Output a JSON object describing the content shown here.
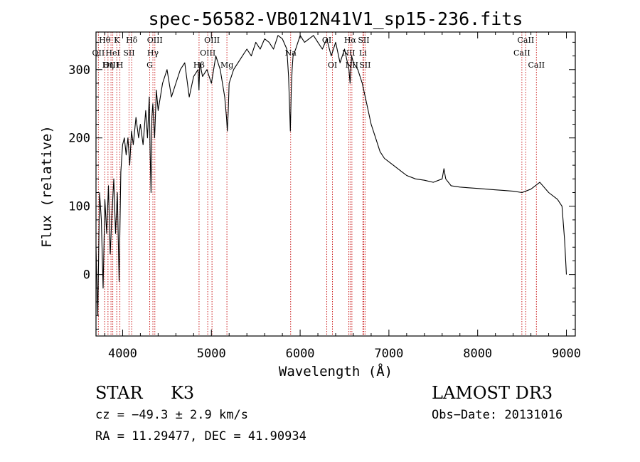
{
  "chart_data": {
    "type": "line",
    "title": "spec-56582-VB012N41V1_sp15-236.fits",
    "xlabel": "Wavelength (Å)",
    "ylabel": "Flux (relative)",
    "xlim": [
      3700,
      9100
    ],
    "ylim": [
      -90,
      355
    ],
    "xticks": [
      4000,
      5000,
      6000,
      7000,
      8000,
      9000
    ],
    "xtick_labels": [
      "4000",
      "5000",
      "6000",
      "7000",
      "8000",
      "9000"
    ],
    "yticks": [
      0,
      100,
      200,
      300
    ],
    "ytick_labels": [
      "0",
      "100",
      "200",
      "300"
    ],
    "grid": false,
    "series": [
      {
        "name": "flux",
        "x": [
          3700,
          3720,
          3740,
          3760,
          3780,
          3800,
          3820,
          3840,
          3860,
          3880,
          3900,
          3920,
          3940,
          3960,
          3980,
          4000,
          4020,
          4040,
          4060,
          4080,
          4100,
          4120,
          4150,
          4180,
          4200,
          4230,
          4260,
          4280,
          4300,
          4310,
          4320,
          4330,
          4340,
          4360,
          4380,
          4400,
          4450,
          4500,
          4550,
          4600,
          4650,
          4700,
          4750,
          4800,
          4850,
          4860,
          4870,
          4900,
          4950,
          5000,
          5050,
          5100,
          5150,
          5170,
          5180,
          5190,
          5200,
          5250,
          5300,
          5350,
          5400,
          5450,
          5500,
          5550,
          5600,
          5650,
          5700,
          5750,
          5800,
          5850,
          5870,
          5880,
          5890,
          5900,
          5910,
          5920,
          5950,
          6000,
          6050,
          6100,
          6150,
          6200,
          6250,
          6300,
          6350,
          6400,
          6450,
          6500,
          6550,
          6563,
          6580,
          6600,
          6650,
          6700,
          6750,
          6800,
          6850,
          6900,
          6950,
          7000,
          7050,
          7100,
          7150,
          7200,
          7300,
          7400,
          7500,
          7600,
          7620,
          7640,
          7700,
          7800,
          7900,
          8000,
          8100,
          8200,
          8300,
          8400,
          8500,
          8600,
          8650,
          8700,
          8800,
          8900,
          8950,
          8980,
          9000
        ],
        "y": [
          40,
          -60,
          120,
          80,
          -20,
          110,
          60,
          130,
          30,
          90,
          140,
          60,
          120,
          -10,
          150,
          190,
          200,
          175,
          200,
          160,
          210,
          190,
          230,
          200,
          220,
          190,
          240,
          200,
          260,
          180,
          120,
          230,
          250,
          200,
          270,
          240,
          280,
          300,
          260,
          280,
          300,
          310,
          260,
          290,
          300,
          270,
          310,
          290,
          300,
          280,
          320,
          300,
          260,
          230,
          210,
          240,
          280,
          300,
          310,
          320,
          330,
          320,
          340,
          330,
          345,
          340,
          330,
          350,
          345,
          330,
          290,
          250,
          210,
          270,
          300,
          320,
          330,
          350,
          340,
          345,
          350,
          340,
          330,
          345,
          320,
          340,
          310,
          330,
          300,
          280,
          320,
          310,
          300,
          280,
          250,
          220,
          200,
          180,
          170,
          165,
          160,
          155,
          150,
          145,
          140,
          138,
          135,
          140,
          155,
          140,
          130,
          128,
          127,
          126,
          125,
          124,
          123,
          122,
          120,
          125,
          130,
          135,
          120,
          110,
          100,
          50,
          0
        ]
      }
    ],
    "annotations": [
      {
        "label": "Hθ",
        "x": 3798,
        "row": 0
      },
      {
        "label": "OII",
        "x": 3727,
        "row": 1
      },
      {
        "label": "OIII",
        "x": 3869,
        "row": 2
      },
      {
        "label": "K",
        "x": 3934,
        "row": 0
      },
      {
        "label": "HeI",
        "x": 3889,
        "row": 1
      },
      {
        "label": "Hη",
        "x": 3835,
        "row": 2
      },
      {
        "label": "Hδ",
        "x": 4102,
        "row": 0
      },
      {
        "label": "SII",
        "x": 4072,
        "row": 1
      },
      {
        "label": "H",
        "x": 3969,
        "row": 2
      },
      {
        "label": "OIII",
        "x": 4363,
        "row": 0
      },
      {
        "label": "Hγ",
        "x": 4341,
        "row": 1
      },
      {
        "label": "G",
        "x": 4305,
        "row": 2
      },
      {
        "label": "OIII",
        "x": 5007,
        "row": 0
      },
      {
        "label": "OIII",
        "x": 4959,
        "row": 1
      },
      {
        "label": "Hβ",
        "x": 4861,
        "row": 2
      },
      {
        "label": "Mg",
        "x": 5175,
        "row": 2
      },
      {
        "label": "Na",
        "x": 5893,
        "row": 1
      },
      {
        "label": "OI",
        "x": 6300,
        "row": 0
      },
      {
        "label": "OI",
        "x": 6364,
        "row": 2
      },
      {
        "label": "Hα",
        "x": 6563,
        "row": 0
      },
      {
        "label": "SII",
        "x": 6716,
        "row": 0
      },
      {
        "label": "NII",
        "x": 6548,
        "row": 1
      },
      {
        "label": "Li",
        "x": 6707,
        "row": 1
      },
      {
        "label": "NII",
        "x": 6583,
        "row": 2
      },
      {
        "label": "SII",
        "x": 6731,
        "row": 2
      },
      {
        "label": "CaII",
        "x": 8542,
        "row": 0
      },
      {
        "label": "CaII",
        "x": 8498,
        "row": 1
      },
      {
        "label": "CaII",
        "x": 8662,
        "row": 2
      }
    ]
  },
  "info": {
    "object_class": "STAR",
    "subclass": "K3",
    "survey": "LAMOST DR3",
    "cz": "cz = −49.3 ± 2.9 km/s",
    "obs_date": "Obs−Date: 20131016",
    "coords": "RA =  11.29477, DEC =  41.90934"
  },
  "colors": {
    "line": "#000000",
    "marker_lines": "#cc2222",
    "background": "#ffffff"
  }
}
